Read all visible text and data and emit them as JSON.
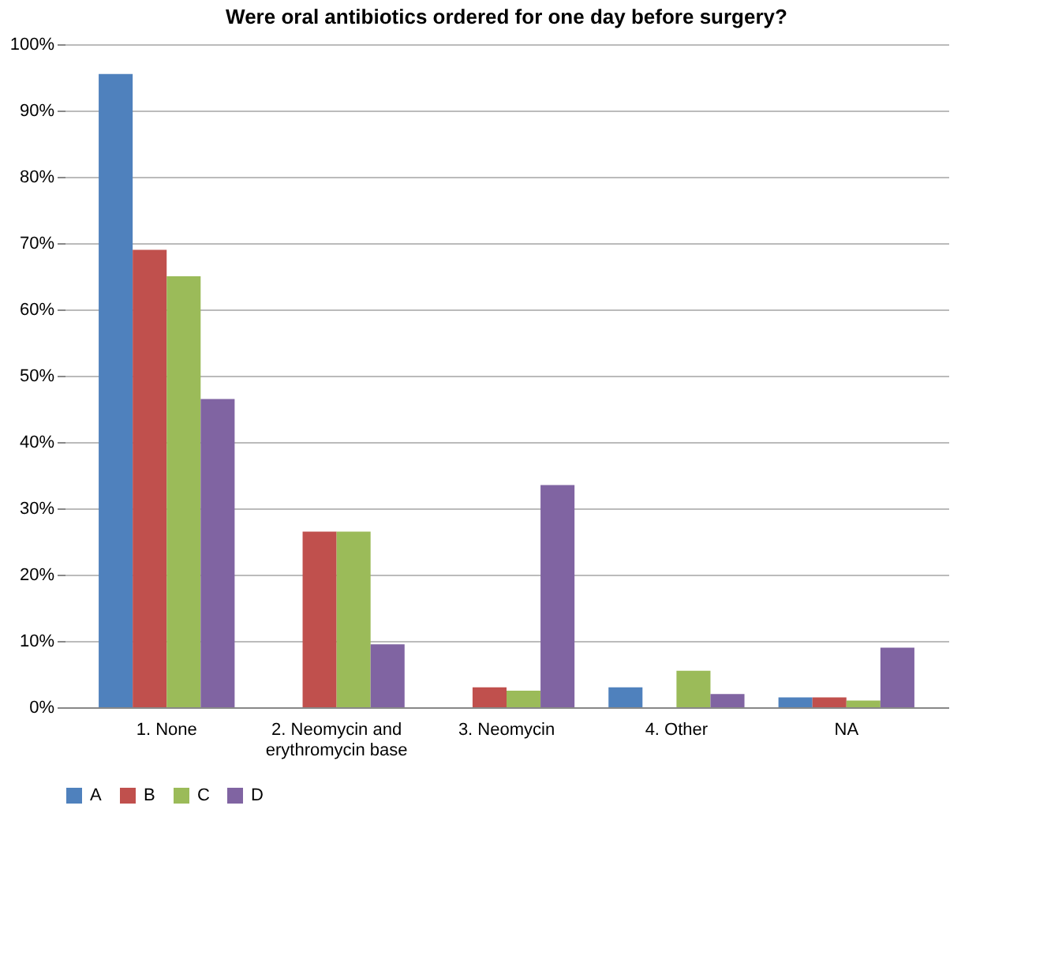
{
  "chart_data": {
    "type": "bar",
    "title": "Were oral antibiotics ordered for one day before surgery?",
    "categories": [
      "1. None",
      "2. Neomycin and erythromycin base",
      "3. Neomycin",
      "4. Other",
      "NA"
    ],
    "series": [
      {
        "name": "A",
        "color": "#4f81bd",
        "values": [
          95.5,
          0,
          0,
          3,
          1.5
        ]
      },
      {
        "name": "B",
        "color": "#c0504d",
        "values": [
          69,
          26.5,
          3,
          0,
          1.5
        ]
      },
      {
        "name": "C",
        "color": "#9bbb59",
        "values": [
          65,
          26.5,
          2.5,
          5.5,
          1
        ]
      },
      {
        "name": "D",
        "color": "#8064a2",
        "values": [
          46.5,
          9.5,
          33.5,
          2,
          9
        ]
      }
    ],
    "ylim": [
      0,
      100
    ],
    "yticks": [
      {
        "value": 0,
        "label": "0%"
      },
      {
        "value": 10,
        "label": "10%"
      },
      {
        "value": 20,
        "label": "20%"
      },
      {
        "value": 30,
        "label": "30%"
      },
      {
        "value": 40,
        "label": "40%"
      },
      {
        "value": 50,
        "label": "50%"
      },
      {
        "value": 60,
        "label": "60%"
      },
      {
        "value": 70,
        "label": "70%"
      },
      {
        "value": 80,
        "label": "80%"
      },
      {
        "value": 90,
        "label": "90%"
      },
      {
        "value": 100,
        "label": "100%"
      }
    ],
    "grid": "y",
    "legend": "bottom"
  }
}
